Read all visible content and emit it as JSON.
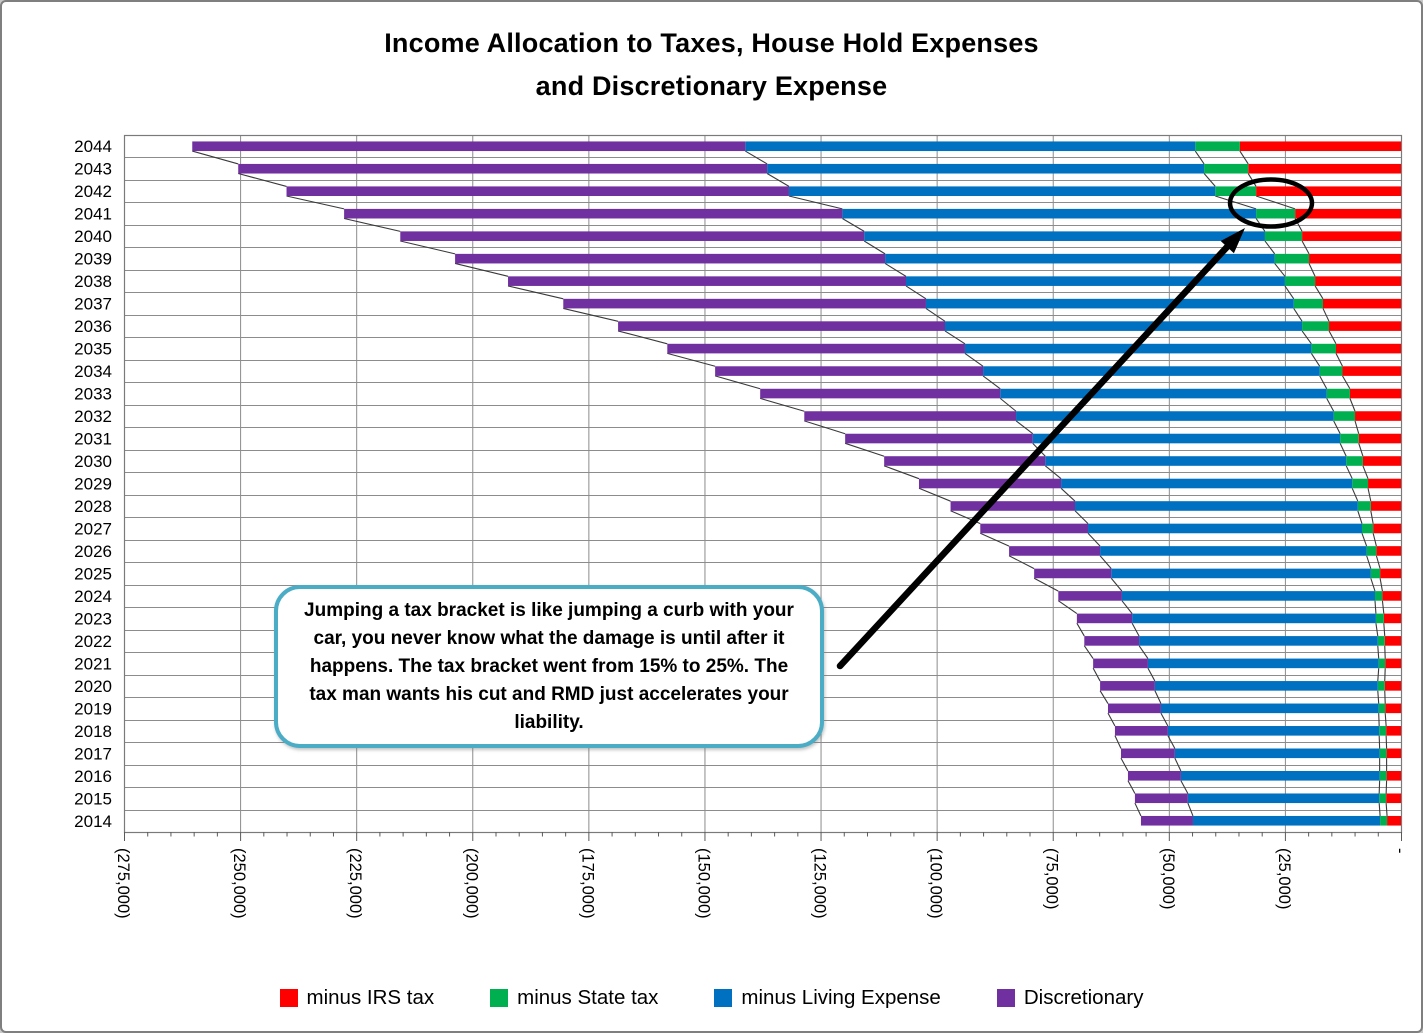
{
  "title": {
    "line1": "Income Allocation to Taxes, House Hold Expenses",
    "line2": "and Discretionary Expense"
  },
  "annotation": {
    "callout_text": "Jumping a tax bracket is like jumping a curb with your car, you never know what the damage is until after it happens.  The tax bracket went from 15% to 25%. The tax man wants his cut and RMD just accelerates your liability.",
    "highlight": "ellipse-around-2041-2042-tax-jump"
  },
  "legend": [
    {
      "label": "minus IRS tax",
      "color": "#FF0000"
    },
    {
      "label": "minus State tax",
      "color": "#00B050"
    },
    {
      "label": "minus Living Expense",
      "color": "#0070C0"
    },
    {
      "label": "Discretionary",
      "color": "#7030A0"
    }
  ],
  "axes": {
    "x_min": -275000,
    "x_max": 0,
    "x_major_step": 25000,
    "x_minor_step": 5000,
    "x_tick_labels": [
      "(275,000)",
      "(250,000)",
      "(225,000)",
      "(200,000)",
      "(175,000)",
      "(150,000)",
      "(125,000)",
      "(100,000)",
      "(75,000)",
      "(50,000)",
      "(25,000)",
      "-"
    ]
  },
  "chart_data": {
    "type": "bar",
    "orientation": "horizontal-stacked",
    "title": "Income Allocation to Taxes, House Hold Expenses and Discretionary Expense",
    "xlabel": "",
    "ylabel": "",
    "xlim": [
      -275000,
      0
    ],
    "grid": true,
    "series_lines": true,
    "legend_position": "bottom",
    "categories": [
      2044,
      2043,
      2042,
      2041,
      2040,
      2039,
      2038,
      2037,
      2036,
      2035,
      2034,
      2033,
      2032,
      2031,
      2030,
      2029,
      2028,
      2027,
      2026,
      2025,
      2024,
      2023,
      2022,
      2021,
      2020,
      2019,
      2018,
      2017,
      2016,
      2015,
      2014
    ],
    "series": [
      {
        "name": "minus IRS tax",
        "color": "#FF0000",
        "values": [
          -34700,
          -32900,
          -31200,
          -22800,
          -21300,
          -19800,
          -18500,
          -16800,
          -15500,
          -14000,
          -12600,
          -11000,
          -9900,
          -9100,
          -8200,
          -7100,
          -6500,
          -6000,
          -5300,
          -4500,
          -4000,
          -3700,
          -3500,
          -3400,
          -3500,
          -3400,
          -3200,
          -3100,
          -3100,
          -3200,
          -3000
        ]
      },
      {
        "name": "minus State tax",
        "color": "#00B050",
        "values": [
          -9600,
          -9500,
          -8800,
          -8400,
          -8000,
          -7400,
          -6500,
          -6300,
          -5800,
          -5300,
          -4900,
          -5000,
          -4600,
          -4000,
          -3600,
          -3400,
          -2800,
          -2400,
          -2100,
          -2000,
          -1600,
          -1700,
          -1500,
          -1400,
          -1500,
          -1400,
          -1500,
          -1500,
          -1500,
          -1500,
          -1500
        ]
      },
      {
        "name": "minus Living Expense",
        "color": "#0070C0",
        "values": [
          -96900,
          -94100,
          -91800,
          -89100,
          -86300,
          -83900,
          -81600,
          -79200,
          -76900,
          -74600,
          -72500,
          -70300,
          -68400,
          -66200,
          -64800,
          -62700,
          -60900,
          -59000,
          -57400,
          -55900,
          -54500,
          -52500,
          -51400,
          -49700,
          -48000,
          -46900,
          -45500,
          -44100,
          -42800,
          -41200,
          -40300
        ]
      },
      {
        "name": "Discretionary",
        "color": "#7030A0",
        "values": [
          -119100,
          -113900,
          -108200,
          -107300,
          -99900,
          -92600,
          -85700,
          -78100,
          -70400,
          -64100,
          -57700,
          -51700,
          -45600,
          -40400,
          -34700,
          -30600,
          -26800,
          -23200,
          -19600,
          -16600,
          -13700,
          -11900,
          -11800,
          -11800,
          -11800,
          -11400,
          -11400,
          -11600,
          -11400,
          -11400,
          -11200
        ]
      }
    ]
  }
}
